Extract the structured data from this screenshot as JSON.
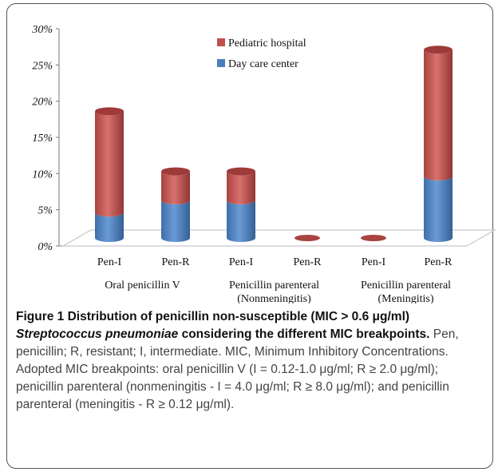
{
  "chart_data": {
    "type": "bar",
    "stacked": true,
    "three_d": true,
    "y_ticks": [
      "0%",
      "5%",
      "10%",
      "15%",
      "20%",
      "25%",
      "30%"
    ],
    "ylim": [
      0,
      30
    ],
    "categories": [
      "Pen-I",
      "Pen-R",
      "Pen-I",
      "Pen-R",
      "Pen-I",
      "Pen-R"
    ],
    "groups": [
      "Oral penicillin V",
      "Penicillin parenteral",
      "Penicillin parenteral"
    ],
    "group_sublabels": [
      "",
      "(Nonmeningitis)",
      "(Meningitis)"
    ],
    "series": [
      {
        "name": "Day care center",
        "color": "#4a7ebb",
        "values": [
          3.5,
          5.2,
          5.2,
          0,
          0,
          8.5
        ]
      },
      {
        "name": "Pediatric hospital",
        "color": "#c0504d",
        "values": [
          14.0,
          4.0,
          4.0,
          0,
          0,
          17.5
        ]
      }
    ],
    "legend_position": "top-right",
    "grid": false
  },
  "caption": {
    "title": "Figure 1 Distribution of penicillin non-susceptible (MIC > 0.6 μg/ml) ",
    "organism": "Streptococcus pneumoniae",
    "title_end": " considering the different MIC breakpoints.",
    "body": " Pen, penicillin; R, resistant; I, intermediate. MIC, Minimum Inhibitory Concentrations. Adopted MIC breakpoints: oral penicillin V (I = 0.12-1.0 μg/ml; R ≥ 2.0 μg/ml); penicillin parenteral (nonmeningitis - I = 4.0 μg/ml; R ≥ 8.0 μg/ml); and penicillin parenteral (meningitis - R ≥ 0.12 μg/ml)."
  }
}
